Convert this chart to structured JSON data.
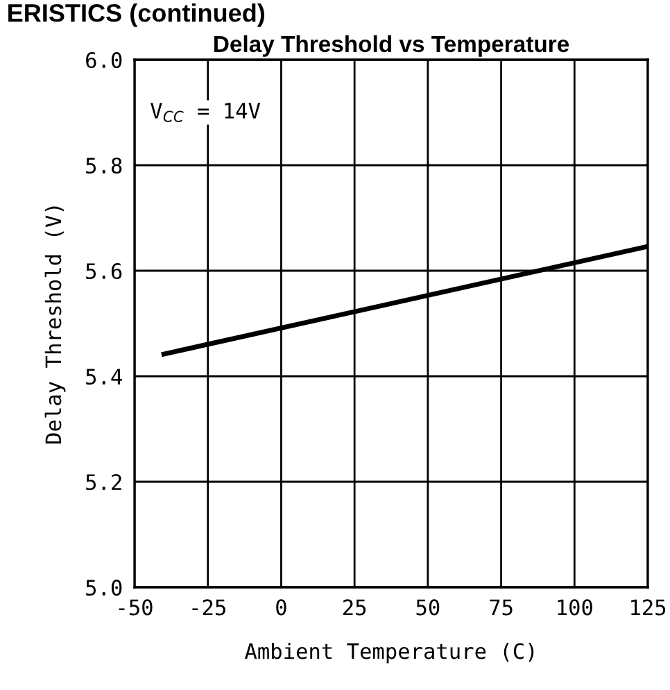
{
  "chart_data": {
    "type": "line",
    "title": "Delay Threshold vs Temperature",
    "xlabel": "Ambient Temperature (C)",
    "ylabel": "Delay Threshold (V)",
    "annotations": [
      "ERISTICS (continued)",
      "V$_{CC}$ = 14V"
    ],
    "x": [
      -40,
      125
    ],
    "series": [
      {
        "color": "#000000",
        "values": [
          5.442,
          5.646
        ]
      }
    ],
    "xlim": [
      -50,
      125
    ],
    "xticks": [
      -50,
      -25,
      0,
      25,
      50,
      75,
      100,
      125
    ],
    "ylim": [
      5.0,
      6.0
    ],
    "yticks": [
      {
        "value": 5.0,
        "label": "5.0"
      },
      5.2,
      5.4,
      5.6,
      5.8,
      {
        "value": 6.0,
        "label": "6.0"
      }
    ],
    "grid": true,
    "legend": false,
    "marker": "none",
    "line_style": "solid"
  }
}
